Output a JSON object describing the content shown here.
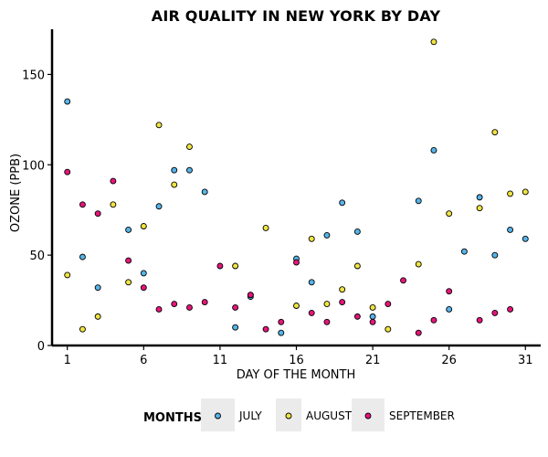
{
  "chart_data": {
    "type": "scatter",
    "title": "AIR QUALITY IN NEW YORK BY DAY",
    "xlabel": "DAY OF THE MONTH",
    "ylabel": "OZONE (PPB)",
    "xlim": [
      0,
      32
    ],
    "ylim": [
      0,
      175
    ],
    "x_ticks": [
      1,
      6,
      11,
      16,
      21,
      26,
      31
    ],
    "y_ticks": [
      0,
      50,
      100,
      150
    ],
    "grid": false,
    "legend": {
      "title": "MONTHS",
      "position": "bottom"
    },
    "series": [
      {
        "name": "JULY",
        "color": "#56B4E9",
        "points": [
          [
            1,
            135
          ],
          [
            2,
            49
          ],
          [
            3,
            32
          ],
          [
            5,
            64
          ],
          [
            6,
            40
          ],
          [
            7,
            77
          ],
          [
            8,
            97
          ],
          [
            9,
            97
          ],
          [
            10,
            85
          ],
          [
            12,
            10
          ],
          [
            13,
            27
          ],
          [
            15,
            7
          ],
          [
            16,
            48
          ],
          [
            17,
            35
          ],
          [
            18,
            61
          ],
          [
            19,
            79
          ],
          [
            20,
            63
          ],
          [
            21,
            16
          ],
          [
            24,
            80
          ],
          [
            25,
            108
          ],
          [
            26,
            20
          ],
          [
            27,
            52
          ],
          [
            28,
            82
          ],
          [
            29,
            50
          ],
          [
            30,
            64
          ],
          [
            31,
            59
          ]
        ]
      },
      {
        "name": "AUGUST",
        "color": "#F0E442",
        "points": [
          [
            1,
            39
          ],
          [
            2,
            9
          ],
          [
            3,
            16
          ],
          [
            4,
            78
          ],
          [
            5,
            35
          ],
          [
            6,
            66
          ],
          [
            7,
            122
          ],
          [
            8,
            89
          ],
          [
            9,
            110
          ],
          [
            12,
            44
          ],
          [
            13,
            28
          ],
          [
            14,
            65
          ],
          [
            16,
            22
          ],
          [
            17,
            59
          ],
          [
            18,
            23
          ],
          [
            19,
            31
          ],
          [
            20,
            44
          ],
          [
            21,
            21
          ],
          [
            22,
            9
          ],
          [
            24,
            45
          ],
          [
            25,
            168
          ],
          [
            26,
            73
          ],
          [
            28,
            76
          ],
          [
            29,
            118
          ],
          [
            30,
            84
          ],
          [
            31,
            85
          ]
        ]
      },
      {
        "name": "SEPTEMBER",
        "color": "#E7157B",
        "points": [
          [
            1,
            96
          ],
          [
            2,
            78
          ],
          [
            3,
            73
          ],
          [
            4,
            91
          ],
          [
            5,
            47
          ],
          [
            6,
            32
          ],
          [
            7,
            20
          ],
          [
            8,
            23
          ],
          [
            9,
            21
          ],
          [
            10,
            24
          ],
          [
            11,
            44
          ],
          [
            12,
            21
          ],
          [
            13,
            28
          ],
          [
            14,
            9
          ],
          [
            15,
            13
          ],
          [
            16,
            46
          ],
          [
            17,
            18
          ],
          [
            18,
            13
          ],
          [
            19,
            24
          ],
          [
            20,
            16
          ],
          [
            21,
            13
          ],
          [
            22,
            23
          ],
          [
            23,
            36
          ],
          [
            24,
            7
          ],
          [
            25,
            14
          ],
          [
            26,
            30
          ],
          [
            28,
            14
          ],
          [
            29,
            18
          ],
          [
            30,
            20
          ]
        ]
      }
    ]
  }
}
